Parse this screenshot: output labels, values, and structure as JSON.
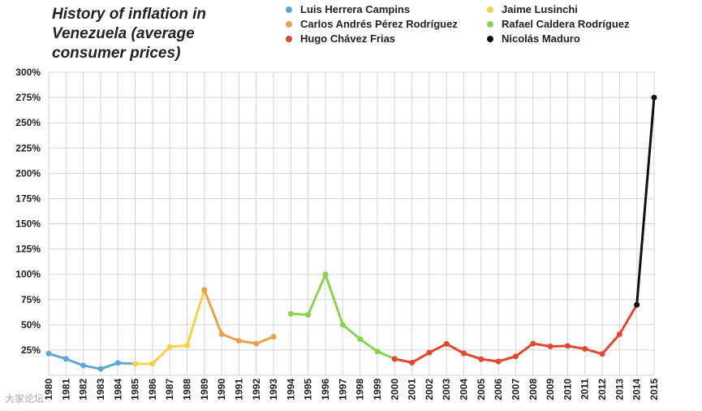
{
  "chart_data": {
    "type": "line",
    "title": "History of inflation in Venezuela (average consumer prices)",
    "xlabel": "",
    "ylabel": "",
    "ylim": [
      0,
      300
    ],
    "yticks": [
      "300%",
      "275%",
      "250%",
      "225%",
      "200%",
      "175%",
      "150%",
      "125%",
      "100%",
      "75%",
      "50%",
      "25%"
    ],
    "ytick_values": [
      300,
      275,
      250,
      225,
      200,
      175,
      150,
      125,
      100,
      75,
      50,
      25
    ],
    "categories": [
      "1980",
      "1981",
      "1982",
      "1983",
      "1984",
      "1985",
      "1986",
      "1987",
      "1988",
      "1989",
      "1990",
      "1991",
      "1992",
      "1993",
      "1994",
      "1995",
      "1996",
      "1997",
      "1998",
      "1999",
      "2000",
      "2001",
      "2002",
      "2003",
      "2004",
      "2005",
      "2006",
      "2007",
      "2008",
      "2009",
      "2010",
      "2011",
      "2012",
      "2013",
      "2014",
      "2015"
    ],
    "grid": true,
    "legend_position": "top-right",
    "series": [
      {
        "name": "Luis Herrera Campins",
        "color": "#5fa8d3",
        "x": [
          "1980",
          "1981",
          "1982",
          "1983",
          "1984",
          "1985"
        ],
        "values": [
          21.5,
          16.2,
          9.7,
          6.3,
          12.2,
          11.4
        ]
      },
      {
        "name": "Jaime Lusinchi",
        "color": "#f2d24b",
        "x": [
          "1985",
          "1986",
          "1987",
          "1988",
          "1989"
        ],
        "values": [
          11.4,
          11.5,
          28.1,
          29.5,
          84.5
        ]
      },
      {
        "name": "Carlos Andrés Pérez Rodríguez",
        "color": "#e8a24c",
        "x": [
          "1989",
          "1990",
          "1991",
          "1992",
          "1993"
        ],
        "values": [
          84.5,
          40.7,
          34.2,
          31.4,
          38.1
        ]
      },
      {
        "name": "Rafael Caldera Rodríguez",
        "color": "#8bd14f",
        "x": [
          "1994",
          "1995",
          "1996",
          "1997",
          "1998",
          "1999",
          "2000"
        ],
        "values": [
          60.8,
          59.9,
          99.9,
          50.0,
          35.8,
          23.6,
          16.2
        ]
      },
      {
        "name": "Hugo Chávez Frias",
        "color": "#e0482d",
        "x": [
          "2000",
          "2001",
          "2002",
          "2003",
          "2004",
          "2005",
          "2006",
          "2007",
          "2008",
          "2009",
          "2010",
          "2011",
          "2012",
          "2013",
          "2014"
        ],
        "values": [
          16.2,
          12.5,
          22.4,
          31.1,
          21.7,
          16.0,
          13.7,
          18.7,
          31.4,
          28.6,
          29.1,
          26.1,
          21.1,
          40.6,
          69.8
        ]
      },
      {
        "name": "Nicolás Maduro",
        "color": "#111111",
        "x": [
          "2014",
          "2015"
        ],
        "values": [
          69.8,
          275.0
        ]
      }
    ],
    "legend": [
      {
        "name": "Luis Herrera Campins",
        "color": "#5fa8d3"
      },
      {
        "name": "Jaime Lusinchi",
        "color": "#f2d24b"
      },
      {
        "name": "Carlos Andrés Pérez Rodríguez",
        "color": "#e8a24c"
      },
      {
        "name": "Rafael Caldera Rodríguez",
        "color": "#8bd14f"
      },
      {
        "name": "Hugo Chávez Frias",
        "color": "#e0482d"
      },
      {
        "name": "Nicolás Maduro",
        "color": "#111111"
      }
    ]
  },
  "watermark": "大家论坛"
}
